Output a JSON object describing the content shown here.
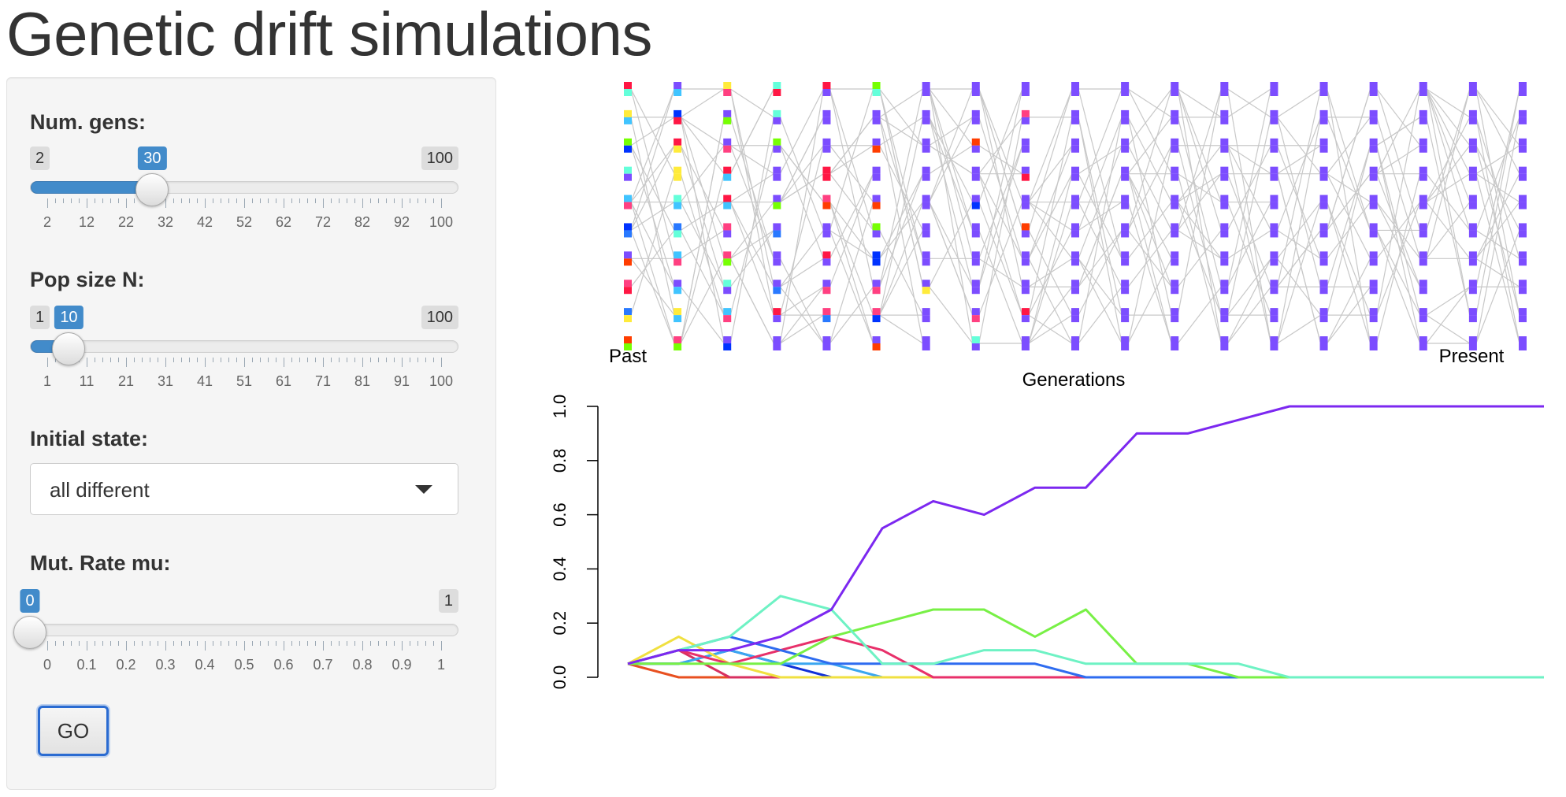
{
  "app": {
    "title": "Genetic drift simulations"
  },
  "controls": {
    "num_gens": {
      "label": "Num. gens:",
      "min": "2",
      "max": "100",
      "value": "30",
      "value_fraction": 0.2857,
      "ticks": [
        "2",
        "12",
        "22",
        "32",
        "42",
        "52",
        "62",
        "72",
        "82",
        "92",
        "100"
      ]
    },
    "pop_size": {
      "label": "Pop size N:",
      "min": "1",
      "max": "100",
      "value": "10",
      "value_fraction": 0.0909,
      "ticks": [
        "1",
        "11",
        "21",
        "31",
        "41",
        "51",
        "61",
        "71",
        "81",
        "91",
        "100"
      ]
    },
    "initial_state": {
      "label": "Initial state:",
      "value": "all different"
    },
    "mut_rate": {
      "label": "Mut. Rate mu:",
      "min": "0",
      "max": "1",
      "value": "0",
      "value_fraction": 0.0,
      "ticks": [
        "0",
        "0.1",
        "0.2",
        "0.3",
        "0.4",
        "0.5",
        "0.6",
        "0.7",
        "0.8",
        "0.9",
        "1"
      ]
    },
    "go_label": "GO"
  },
  "genealogy": {
    "past_label": "Past",
    "present_label": "Present",
    "xlabel": "Generations",
    "generations": 19,
    "rows": 10,
    "colors": [
      "#ff1744",
      "#ffeb3b",
      "#76ff03",
      "#64ffda",
      "#40c4ff",
      "#0033ff",
      "#7c4dff",
      "#ff4081",
      "#2979ff",
      "#ff3d00"
    ]
  },
  "chart_data": {
    "type": "line",
    "title": "",
    "xlabel": "",
    "ylabel": "",
    "ylim": [
      0,
      1
    ],
    "y_ticks": [
      "0.0",
      "0.2",
      "0.4",
      "0.6",
      "0.8",
      "1.0"
    ],
    "x": [
      0,
      1,
      2,
      3,
      4,
      5,
      6,
      7,
      8,
      9,
      10,
      11,
      12,
      13,
      14,
      15,
      16,
      17,
      18
    ],
    "series": [
      {
        "color": "#7c28f0",
        "values": [
          0.05,
          0.1,
          0.1,
          0.15,
          0.25,
          0.55,
          0.65,
          0.6,
          0.7,
          0.7,
          0.9,
          0.9,
          0.95,
          1.0,
          1.0,
          1.0,
          1.0,
          1.0,
          1.0
        ]
      },
      {
        "color": "#6ef2c4",
        "values": [
          0.05,
          0.1,
          0.15,
          0.3,
          0.25,
          0.05,
          0.05,
          0.1,
          0.1,
          0.05,
          0.05,
          0.05,
          0.05,
          0,
          0,
          0,
          0,
          0,
          0
        ]
      },
      {
        "color": "#78f046",
        "values": [
          0.05,
          0.05,
          0.05,
          0.05,
          0.15,
          0.2,
          0.25,
          0.25,
          0.15,
          0.25,
          0.05,
          0.05,
          0,
          0,
          0,
          0,
          0,
          0,
          0
        ]
      },
      {
        "color": "#2e6cf0",
        "values": [
          0.05,
          0.1,
          0.15,
          0.1,
          0.05,
          0.05,
          0.05,
          0.05,
          0.05,
          0,
          0,
          0,
          0,
          0,
          0,
          0,
          0,
          0,
          0
        ]
      },
      {
        "color": "#e8306a",
        "values": [
          0.05,
          0.1,
          0.05,
          0.1,
          0.15,
          0.1,
          0,
          0,
          0,
          0,
          0,
          0,
          0,
          0,
          0,
          0,
          0,
          0,
          0
        ]
      },
      {
        "color": "#f0e040",
        "values": [
          0.05,
          0.15,
          0.05,
          0,
          0,
          0,
          0,
          0,
          0,
          0,
          0,
          0,
          0,
          0,
          0,
          0,
          0,
          0,
          0
        ]
      },
      {
        "color": "#3aa6f0",
        "values": [
          0.05,
          0.05,
          0.1,
          0.05,
          0.05,
          0,
          0,
          0,
          0,
          0,
          0,
          0,
          0,
          0,
          0,
          0,
          0,
          0,
          0
        ]
      },
      {
        "color": "#1030d8",
        "values": [
          0.05,
          0.05,
          0.1,
          0.05,
          0,
          0,
          0,
          0,
          0,
          0,
          0,
          0,
          0,
          0,
          0,
          0,
          0,
          0,
          0
        ]
      },
      {
        "color": "#d83060",
        "values": [
          0.05,
          0.1,
          0,
          0,
          0,
          0,
          0,
          0,
          0,
          0,
          0,
          0,
          0,
          0,
          0,
          0,
          0,
          0,
          0
        ]
      },
      {
        "color": "#e85020",
        "values": [
          0.05,
          0,
          0,
          0,
          0,
          0,
          0,
          0,
          0,
          0,
          0,
          0,
          0,
          0,
          0,
          0,
          0,
          0,
          0
        ]
      }
    ]
  }
}
